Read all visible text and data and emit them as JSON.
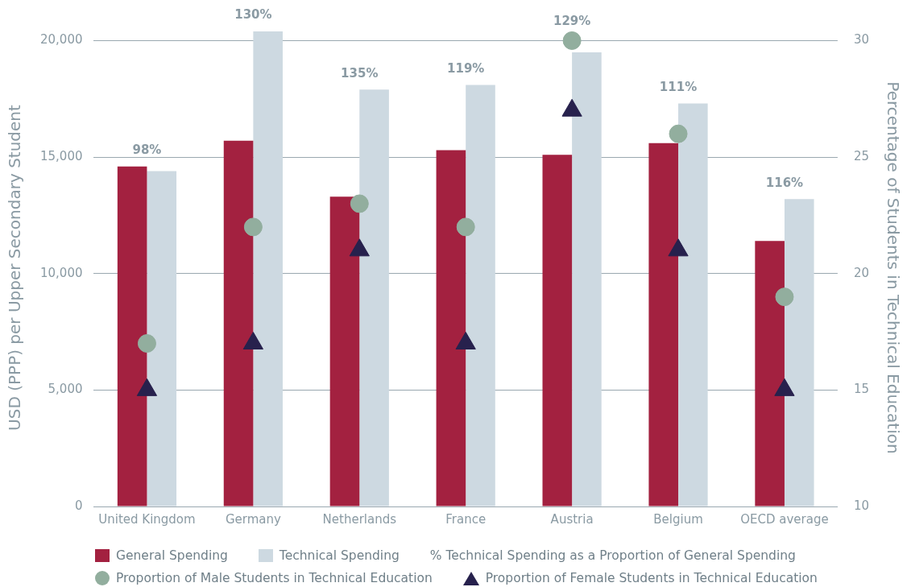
{
  "chart_data": {
    "type": "bar",
    "categories": [
      "United Kingdom",
      "Germany",
      "Netherlands",
      "France",
      "Austria",
      "Belgium",
      "OECD average"
    ],
    "series": [
      {
        "name": "General Spending",
        "color": "#a32140",
        "values": [
          14600,
          15700,
          13300,
          15300,
          15100,
          15600,
          11400
        ]
      },
      {
        "name": "Technical Spending",
        "color": "#cdd9e1",
        "values": [
          14400,
          20400,
          17900,
          18100,
          19500,
          17300,
          13200
        ]
      },
      {
        "name": "Proportion of Male Students in Technical Education",
        "type": "scatter",
        "marker": "circle",
        "axis": "y2",
        "color": "#92ae9e",
        "values": [
          17,
          22,
          23,
          22,
          30,
          26,
          19
        ]
      },
      {
        "name": "Proportion of Female Students in Technical Education",
        "type": "scatter",
        "marker": "triangle",
        "axis": "y2",
        "color": "#27214d",
        "values": [
          15,
          17,
          21,
          17,
          27,
          21,
          15
        ]
      }
    ],
    "ylabel": "USD (PPP) per Upper Secondary Student",
    "y2label": "Percentage of Students in Technical Education",
    "ylim": [
      0,
      20500
    ],
    "yticks": [
      {
        "value": 0,
        "label": "0"
      },
      {
        "value": 5000,
        "label": "5,000"
      },
      {
        "value": 10000,
        "label": "10,000"
      },
      {
        "value": 15000,
        "label": "15,000"
      },
      {
        "value": 20000,
        "label": "20,000"
      }
    ],
    "y2lim": [
      10,
      30.5
    ],
    "y2ticks": [
      10,
      15,
      20,
      25,
      30
    ],
    "annotations": [
      "% Technical Spending as a Proportion of General Spending",
      {
        "text": "98%",
        "x": "United Kingdom",
        "y": 14600
      },
      {
        "text": "130%",
        "x": "Germany",
        "y": 20400
      },
      {
        "text": "135%",
        "x": "Netherlands",
        "y": 17900
      },
      {
        "text": "119%",
        "x": "France",
        "y": 18100
      },
      {
        "text": "129%",
        "x": "Austria",
        "y": 19500
      },
      {
        "text": "111%",
        "x": "Belgium",
        "y": 17300
      },
      {
        "text": "116%",
        "x": "OECD average",
        "y": 13200
      }
    ],
    "grid": "y",
    "legend": "bottom"
  }
}
